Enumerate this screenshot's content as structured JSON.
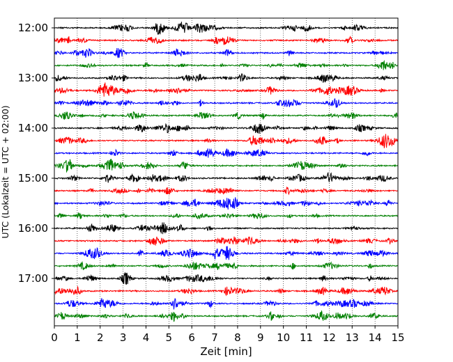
{
  "chart_data": {
    "type": "line",
    "title": "",
    "xlabel": "Zeit  [min]",
    "ylabel": "UTC (Lokalzeit = UTC + 02:00)",
    "xlim": [
      0,
      15
    ],
    "xticks": [
      "0",
      "1",
      "2",
      "3",
      "4",
      "5",
      "6",
      "7",
      "8",
      "9",
      "10",
      "11",
      "12",
      "13",
      "14",
      "15"
    ],
    "ytick_labels": [
      "12:00",
      "13:00",
      "14:00",
      "15:00",
      "16:00",
      "17:00"
    ],
    "rows_per_hour": 4,
    "row_count": 24,
    "row_start_times": [
      "12:00",
      "12:15",
      "12:30",
      "12:45",
      "13:00",
      "13:15",
      "13:30",
      "13:45",
      "14:00",
      "14:15",
      "14:30",
      "14:45",
      "15:00",
      "15:15",
      "15:30",
      "15:45",
      "16:00",
      "16:15",
      "16:30",
      "16:45",
      "17:00",
      "17:15",
      "17:30",
      "17:45"
    ],
    "trace_colors": [
      "#000000",
      "#ff0000",
      "#0000ff",
      "#008000"
    ],
    "grid": "vertical dotted lines at each minute",
    "legend": "none"
  }
}
